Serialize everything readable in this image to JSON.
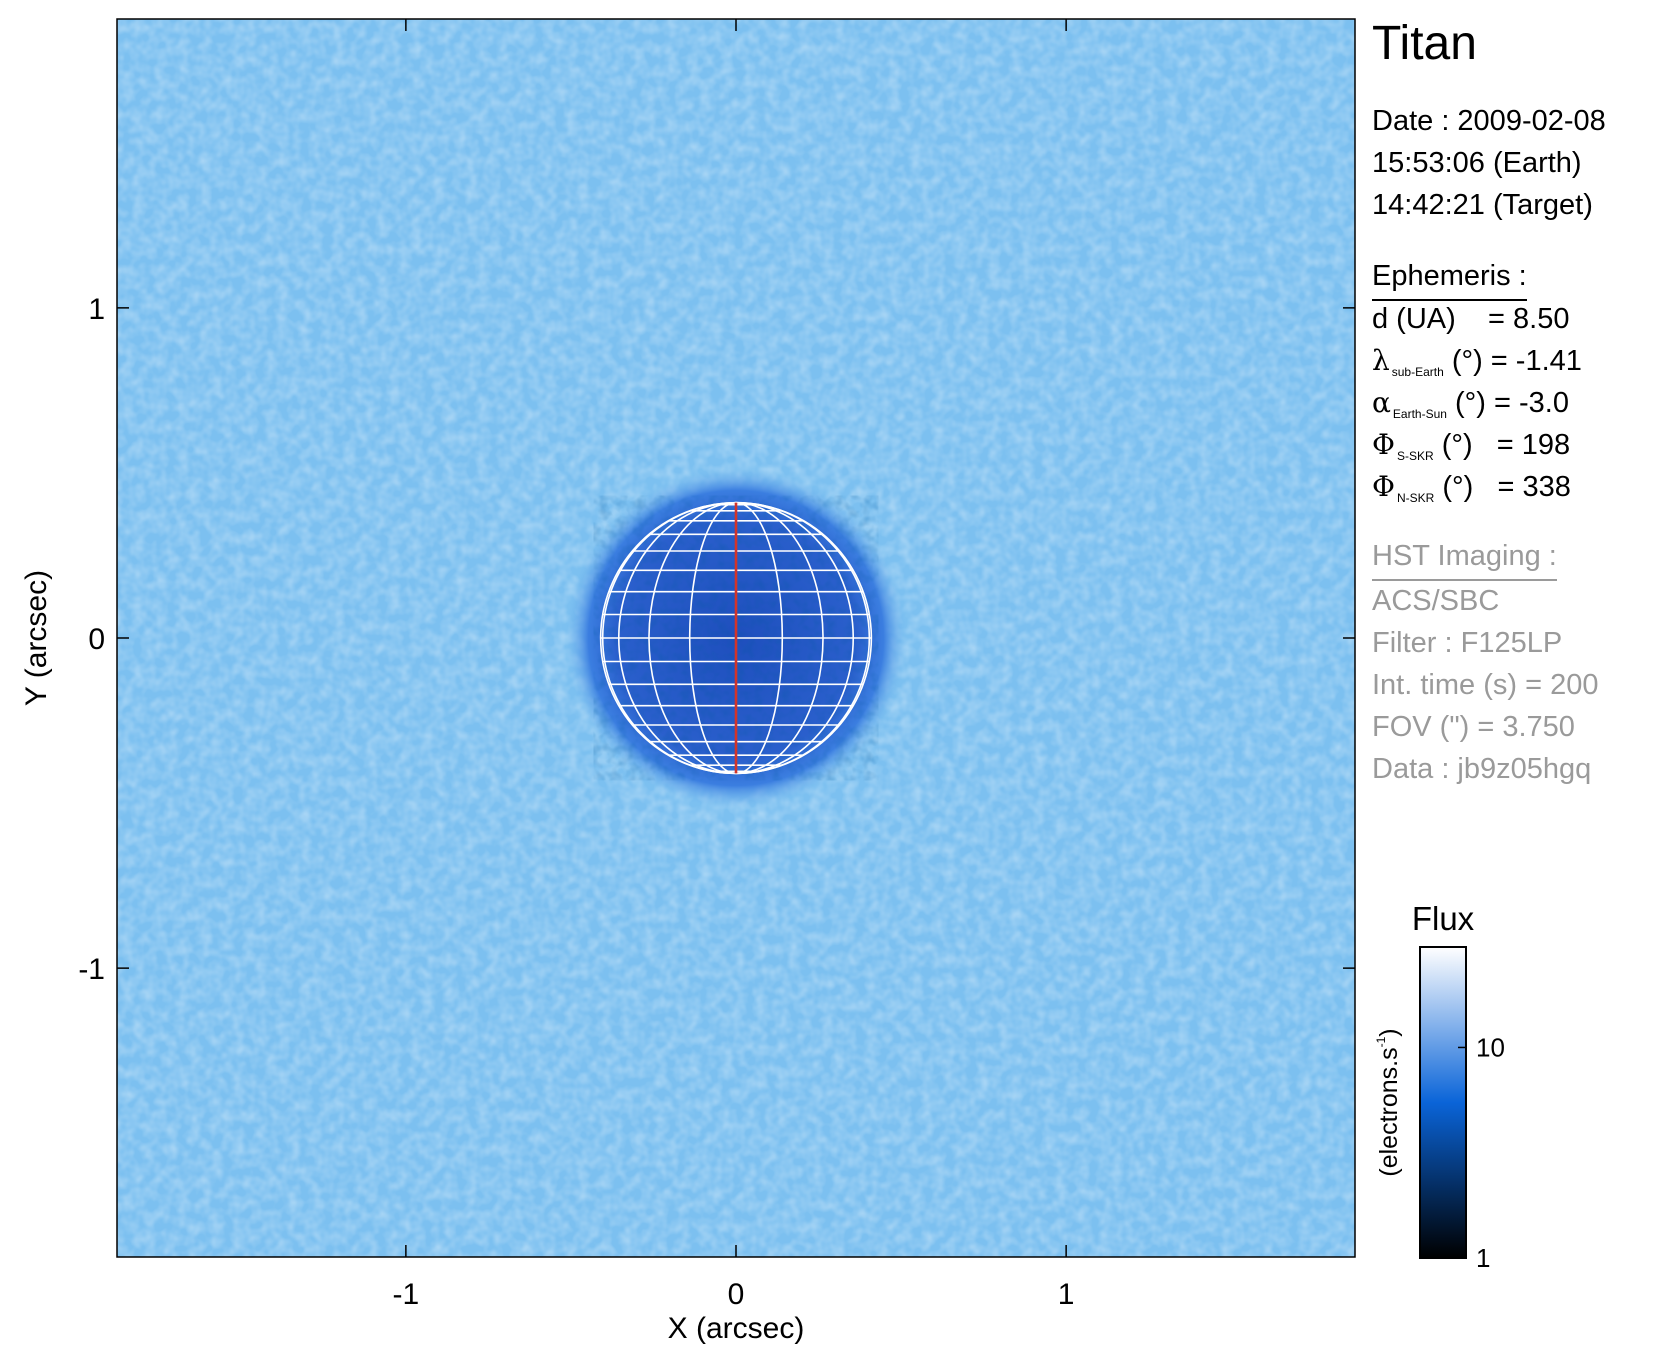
{
  "chart_data": {
    "type": "heatmap",
    "target_name": "Titan",
    "xlabel": "X (arcsec)",
    "ylabel": "Y (arcsec)",
    "xlim": [
      -1.875,
      1.875
    ],
    "ylim": [
      -1.875,
      1.875
    ],
    "x_ticks": [
      {
        "value": -1,
        "label": "-1"
      },
      {
        "value": 0,
        "label": "0"
      },
      {
        "value": 1,
        "label": "1"
      }
    ],
    "y_ticks": [
      {
        "value": -1,
        "label": "-1"
      },
      {
        "value": 0,
        "label": "0"
      },
      {
        "value": 1,
        "label": "1"
      }
    ],
    "disk": {
      "center": [
        0,
        0
      ],
      "radius_arcsec": 0.41,
      "limb_region_radius_arcsec": 0.52
    },
    "central_meridian_color": "#d2342a",
    "grid_color": "#ffffff",
    "colorbar": {
      "title": "Flux",
      "label": "(electrons.s",
      "label_sup": "-1",
      "label_close": ")",
      "scale": "log",
      "range": [
        1,
        30
      ],
      "ticks": [
        {
          "value": 1,
          "label": "1"
        },
        {
          "value": 10,
          "label": "10"
        }
      ]
    },
    "colors": {
      "background_field": "#7cc0f0",
      "disk": "#2a5fcc",
      "cmap_low": "#000000",
      "cmap_mid": "#0a64d8",
      "cmap_high": "#ffffff"
    }
  },
  "info": {
    "title": "Titan",
    "date_line": "Date : 2009-02-08",
    "earth_time": "15:53:06 (Earth)",
    "target_time": "14:42:21 (Target)",
    "ephemeris_header": "Ephemeris :",
    "ephemeris": [
      {
        "symbol": "",
        "main": "d (UA)",
        "sub": "",
        "rest": "    = 8.50"
      },
      {
        "symbol": "λ",
        "main": "",
        "sub": "sub-Earth",
        "rest": " (°) = -1.41"
      },
      {
        "symbol": "α",
        "main": "",
        "sub": "Earth-Sun",
        "rest": " (°) = -3.0"
      },
      {
        "symbol": "Φ",
        "main": "",
        "sub": "S-SKR",
        "rest": " (°)   = 198"
      },
      {
        "symbol": "Φ",
        "main": "",
        "sub": "N-SKR",
        "rest": " (°)   = 338"
      }
    ],
    "imaging_header": "HST Imaging :",
    "imaging": [
      "ACS/SBC",
      "Filter : F125LP",
      "Int. time (s) = 200",
      "FOV (\") = 3.750",
      "Data : jb9z05hgq"
    ]
  }
}
